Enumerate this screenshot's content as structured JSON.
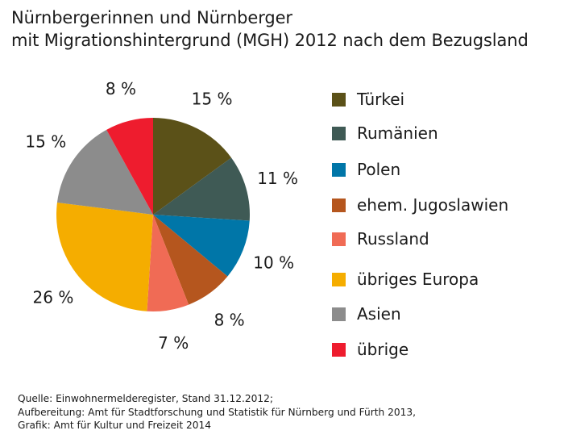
{
  "title": {
    "line1": "Nürnbergerinnen und Nürnberger",
    "line2": "mit Migrationshintergrund (MGH) 2012 nach dem Bezugsland"
  },
  "chart_data": {
    "type": "pie",
    "title": "Nürnbergerinnen und Nürnberger mit Migrationshintergrund (MGH) 2012 nach dem Bezugsland",
    "unit": "%",
    "categories": [
      "Türkei",
      "Rumänien",
      "Polen",
      "ehem. Jugoslawien",
      "Russland",
      "übriges Europa",
      "Asien",
      "übrige"
    ],
    "values": [
      15,
      11,
      10,
      8,
      7,
      26,
      15,
      8
    ],
    "value_labels": [
      "15 %",
      "11 %",
      "10 %",
      "8 %",
      "7 %",
      "26 %",
      "15 %",
      "8 %"
    ],
    "colors": [
      "#5b5118",
      "#3f5a55",
      "#0076a8",
      "#b5561e",
      "#f06b55",
      "#f5ad00",
      "#8c8c8c",
      "#ee1c2e"
    ],
    "legend_position": "right",
    "start": "12 o'clock",
    "direction": "clockwise"
  },
  "source": {
    "line1": "Quelle: Einwohnermelderegister, Stand 31.12.2012;",
    "line2": "Aufbereitung: Amt für Stadtforschung und Statistik für Nürnberg und Fürth 2013,",
    "line3": "Grafik: Amt für Kultur und Freizeit 2014"
  }
}
